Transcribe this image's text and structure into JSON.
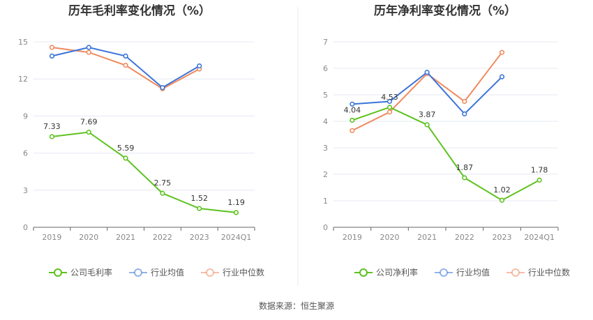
{
  "source": "数据来源：恒生聚源",
  "legend_common": [
    "行业均值",
    "行业中位数"
  ],
  "colors": {
    "company": "#5cc21f",
    "industry_avg": "#3b74d9",
    "industry_median": "#f08a5d"
  },
  "chart_data": [
    {
      "type": "line",
      "title": "历年毛利率变化情况（%）",
      "categories": [
        "2019",
        "2020",
        "2021",
        "2022",
        "2023",
        "2024Q1"
      ],
      "ylim": [
        0,
        15
      ],
      "yticks": [
        0,
        3,
        6,
        9,
        12,
        15
      ],
      "grid": true,
      "legend": "bottom",
      "series": [
        {
          "name": "公司毛利率",
          "key": "company",
          "values": [
            7.33,
            7.69,
            5.59,
            2.75,
            1.52,
            1.19
          ],
          "labels": true
        },
        {
          "name": "行业均值",
          "key": "industry_avg",
          "values": [
            13.85,
            14.55,
            13.85,
            11.3,
            13.05,
            null
          ],
          "labels": false
        },
        {
          "name": "行业中位数",
          "key": "industry_median",
          "values": [
            14.55,
            14.15,
            13.1,
            11.2,
            12.8,
            null
          ],
          "labels": false
        }
      ]
    },
    {
      "type": "line",
      "title": "历年净利率变化情况（%）",
      "categories": [
        "2019",
        "2020",
        "2021",
        "2022",
        "2023",
        "2024Q1"
      ],
      "ylim": [
        0,
        7
      ],
      "yticks": [
        0,
        1,
        2,
        3,
        4,
        5,
        6,
        7
      ],
      "grid": true,
      "legend": "bottom",
      "series": [
        {
          "name": "公司净利率",
          "key": "company",
          "values": [
            4.04,
            4.53,
            3.87,
            1.87,
            1.02,
            1.78
          ],
          "labels": true
        },
        {
          "name": "行业均值",
          "key": "industry_avg",
          "values": [
            4.65,
            4.75,
            5.85,
            4.28,
            5.68,
            null
          ],
          "labels": false
        },
        {
          "name": "行业中位数",
          "key": "industry_median",
          "values": [
            3.65,
            4.35,
            5.8,
            4.75,
            6.6,
            null
          ],
          "labels": false
        }
      ]
    }
  ]
}
